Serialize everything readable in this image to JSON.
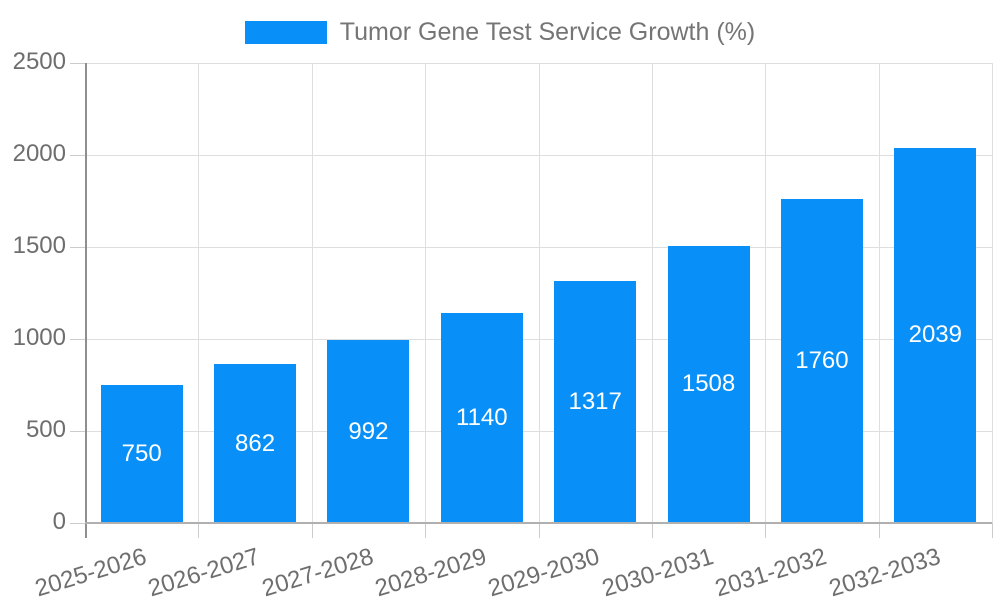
{
  "chart_data": {
    "type": "bar",
    "title": "Tumor Gene Test Service Growth (%)",
    "legend": {
      "label": "Tumor Gene Test Service Growth (%)",
      "position": "top"
    },
    "categories": [
      "2025-2026",
      "2026-2027",
      "2027-2028",
      "2028-2029",
      "2029-2030",
      "2030-2031",
      "2031-2032",
      "2032-2033"
    ],
    "values": [
      750,
      862,
      992,
      1140,
      1317,
      1508,
      1760,
      2039
    ],
    "data_labels": [
      "750",
      "862",
      "992",
      "1140",
      "1317",
      "1508",
      "1760",
      "2039"
    ],
    "xlabel": "",
    "ylabel": "",
    "ylim": [
      0,
      2500
    ],
    "yticks": [
      0,
      500,
      1000,
      1500,
      2000,
      2500
    ],
    "grid": true,
    "colors": {
      "bar": "#0890f8",
      "grid": "#dedede",
      "tick": "#cccccc",
      "tick_text": "#6e6e6e",
      "legend_text": "#757575",
      "data_label": "#ffffff",
      "background": "#ffffff"
    }
  }
}
